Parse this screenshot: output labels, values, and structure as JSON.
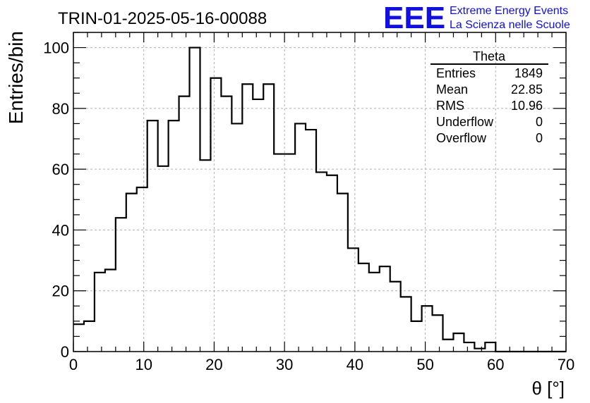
{
  "chart_data": {
    "type": "bar",
    "title": "TRIN-01-2025-05-16-00088",
    "xlabel": "θ [°]",
    "ylabel": "Entries/bin",
    "xlim": [
      0,
      70
    ],
    "ylim": [
      0,
      105
    ],
    "grid": true,
    "x_ticks": [
      "0",
      "10",
      "20",
      "30",
      "40",
      "50",
      "60",
      "70"
    ],
    "y_ticks": [
      "0",
      "20",
      "40",
      "60",
      "80",
      "100"
    ],
    "bin_width": 1.5,
    "bin_start": 0,
    "values": [
      9,
      10,
      26,
      27,
      44,
      52,
      54,
      76,
      61,
      76,
      84,
      100,
      63,
      90,
      84,
      75,
      88,
      83,
      88,
      65,
      65,
      75,
      73,
      59,
      58,
      52,
      34,
      29,
      26,
      28,
      23,
      18,
      10,
      15,
      12,
      4,
      6,
      3,
      1,
      3,
      0,
      0,
      0,
      0,
      0,
      0,
      0
    ]
  },
  "stats_box": {
    "title": "Theta",
    "rows": [
      {
        "label": "Entries",
        "value": "1849"
      },
      {
        "label": "Mean",
        "value": "22.85"
      },
      {
        "label": "RMS",
        "value": "10.96"
      },
      {
        "label": "Underflow",
        "value": "0"
      },
      {
        "label": "Overflow",
        "value": "0"
      }
    ]
  },
  "logo": {
    "mark": "EEE",
    "line1": "Extreme Energy Events",
    "line2": "La Scienza nelle Scuole",
    "color": "#1010e0"
  }
}
